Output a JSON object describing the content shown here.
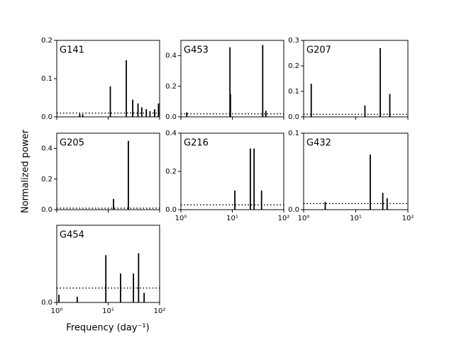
{
  "ylabel": "Normalized power",
  "xlabel": "Frequency (day⁻¹)",
  "chart_data": [
    {
      "type": "stem",
      "title": "G141",
      "xscale": "log",
      "xlim": [
        1,
        100
      ],
      "xticks": [
        1,
        10,
        100
      ],
      "xtick_labels": false,
      "ylim": [
        0,
        0.2
      ],
      "yticks": [
        {
          "value": 0,
          "label": "0.0"
        },
        0.1,
        0.2
      ],
      "threshold": 0.01,
      "color": "#000000",
      "x": [
        2.8,
        3.2,
        11,
        22.5,
        30,
        38,
        45,
        55,
        65,
        80,
        95
      ],
      "values": [
        0.008,
        0.007,
        0.08,
        0.148,
        0.045,
        0.035,
        0.025,
        0.02,
        0.015,
        0.02,
        0.035
      ]
    },
    {
      "type": "stem",
      "title": "G453",
      "xscale": "log",
      "xlim": [
        1,
        100
      ],
      "xticks": [
        1,
        10,
        100
      ],
      "xtick_labels": false,
      "ylim": [
        0,
        0.5
      ],
      "yticks": [
        {
          "value": 0,
          "label": "0.0"
        },
        0.2,
        0.4
      ],
      "threshold": 0.02,
      "color": "#000000",
      "x": [
        1.3,
        9,
        9.2,
        39,
        45
      ],
      "values": [
        0.03,
        0.455,
        0.15,
        0.47,
        0.04
      ]
    },
    {
      "type": "stem",
      "title": "G207",
      "xscale": "log",
      "xlim": [
        1,
        100
      ],
      "xticks": [
        1,
        10,
        100
      ],
      "xtick_labels": false,
      "ylim": [
        0,
        0.3
      ],
      "yticks": [
        {
          "value": 0,
          "label": "0.0"
        },
        0.1,
        0.2,
        0.3
      ],
      "threshold": 0.01,
      "color": "#000000",
      "x": [
        1.4,
        15,
        29.5,
        45
      ],
      "values": [
        0.13,
        0.045,
        0.27,
        0.09
      ]
    },
    {
      "type": "stem",
      "title": "G205",
      "xscale": "log",
      "xlim": [
        1,
        100
      ],
      "xticks": [
        1,
        10,
        100
      ],
      "xtick_labels": false,
      "ylim": [
        0,
        0.5
      ],
      "yticks": [
        {
          "value": 0,
          "label": "0.0"
        },
        0.2,
        0.4
      ],
      "threshold": 0.01,
      "color": "#000000",
      "x": [
        12.7,
        24.7
      ],
      "values": [
        0.07,
        0.45
      ]
    },
    {
      "type": "stem",
      "title": "G216",
      "xscale": "log",
      "xlim": [
        1,
        100
      ],
      "xticks": [
        {
          "value": 1,
          "label": "10⁰"
        },
        {
          "value": 10,
          "label": "10¹"
        },
        {
          "value": 100,
          "label": "10²"
        }
      ],
      "xtick_labels": true,
      "ylim": [
        0,
        0.4
      ],
      "yticks": [
        {
          "value": 0,
          "label": "0.0"
        },
        0.2,
        0.4
      ],
      "threshold": 0.025,
      "color": "#000000",
      "x": [
        11.2,
        22.4,
        26.5,
        37
      ],
      "values": [
        0.1,
        0.32,
        0.32,
        0.1
      ]
    },
    {
      "type": "stem",
      "title": "G432",
      "xscale": "log",
      "xlim": [
        1,
        100
      ],
      "xticks": [
        {
          "value": 1,
          "label": "10⁰"
        },
        {
          "value": 10,
          "label": "10¹"
        },
        {
          "value": 100,
          "label": "10²"
        }
      ],
      "xtick_labels": true,
      "ylim": [
        0,
        0.1
      ],
      "yticks": [
        {
          "value": 0,
          "label": "0.0"
        },
        0.1
      ],
      "threshold": 0.008,
      "color": "#000000",
      "x": [
        2.6,
        19,
        33,
        40
      ],
      "values": [
        0.01,
        0.072,
        0.022,
        0.015
      ]
    },
    {
      "type": "stem",
      "title": "G454",
      "xscale": "log",
      "xlim": [
        1,
        100
      ],
      "xticks": [
        {
          "value": 1,
          "label": "10⁰"
        },
        {
          "value": 10,
          "label": "10¹"
        },
        {
          "value": 100,
          "label": "10²"
        }
      ],
      "xtick_labels": true,
      "ylim": [
        0,
        0.08
      ],
      "yticks": [
        {
          "value": 0,
          "label": "0.0"
        }
      ],
      "threshold": 0.015,
      "color": "#000000",
      "x": [
        1.1,
        2.5,
        9,
        17.4,
        31,
        39,
        50
      ],
      "values": [
        0.008,
        0.006,
        0.049,
        0.03,
        0.03,
        0.051,
        0.01
      ]
    }
  ]
}
